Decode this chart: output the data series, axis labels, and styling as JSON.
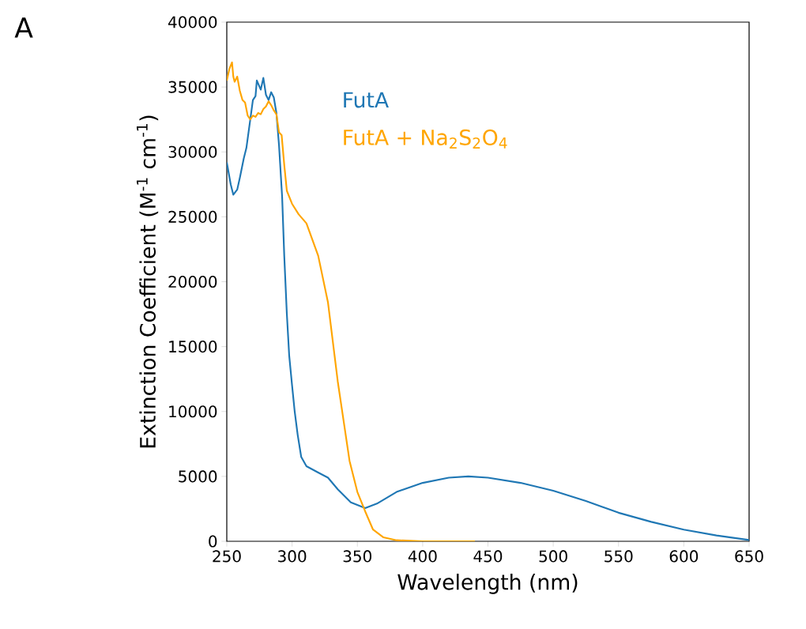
{
  "chart_data": {
    "type": "line",
    "xlabel": "Wavelength (nm)",
    "ylabel": "Extinction Coefficient (M$^{-1}$ cm$^{-1}$)",
    "annotations": [
      "A"
    ],
    "xlim": [
      250,
      650
    ],
    "ylim": [
      0,
      40000
    ],
    "xticks": [
      250,
      300,
      350,
      400,
      450,
      500,
      550,
      600,
      650
    ],
    "yticks": [
      0,
      5000,
      10000,
      15000,
      20000,
      25000,
      30000,
      35000,
      40000
    ],
    "legend": "top",
    "grid": false,
    "series": [
      {
        "name": "FutA",
        "color": "#1f77b4",
        "x": [
          250,
          253,
          255,
          258,
          260,
          263,
          265,
          268,
          270,
          272,
          273,
          276,
          278,
          280,
          282,
          284,
          286,
          288,
          290,
          292.4,
          294,
          296,
          297.8,
          300,
          302,
          304.3,
          307,
          311,
          320,
          327.5,
          335,
          345,
          356,
          365,
          380,
          400,
          420,
          435,
          450,
          475,
          500,
          525,
          550,
          575,
          600,
          625,
          650
        ],
        "values": [
          29200,
          27500,
          26700,
          27100,
          28000,
          29500,
          30300,
          32500,
          34000,
          34300,
          35500,
          34800,
          35700,
          34400,
          34000,
          34600,
          34200,
          33000,
          30500,
          26500,
          22000,
          17500,
          14300,
          12000,
          10000,
          8200,
          6500,
          5780,
          5300,
          4900,
          4000,
          3000,
          2560,
          2900,
          3800,
          4500,
          4900,
          5000,
          4900,
          4500,
          3900,
          3100,
          2200,
          1500,
          900,
          450,
          100
        ]
      },
      {
        "name": "FutA + Na$_{2}$S$_{2}$O$_{4}$",
        "color": "#ffa500",
        "x": [
          250,
          252,
          254,
          255,
          256,
          258,
          260,
          262,
          264,
          266,
          268,
          270,
          272,
          274,
          276,
          278,
          280,
          282,
          284,
          286,
          288,
          290,
          292,
          294,
          296,
          300,
          305,
          311,
          320,
          327.5,
          335,
          344,
          350,
          356,
          362,
          370,
          380,
          400,
          440
        ],
        "values": [
          35500,
          36400,
          36900,
          35800,
          35400,
          35800,
          34700,
          34000,
          33800,
          32800,
          32500,
          32800,
          32700,
          33000,
          32900,
          33300,
          33500,
          33900,
          33600,
          33200,
          32900,
          31500,
          31300,
          29000,
          27000,
          26000,
          25200,
          24500,
          22000,
          18400,
          12300,
          6200,
          3800,
          2300,
          900,
          300,
          80,
          0,
          0
        ]
      }
    ]
  }
}
